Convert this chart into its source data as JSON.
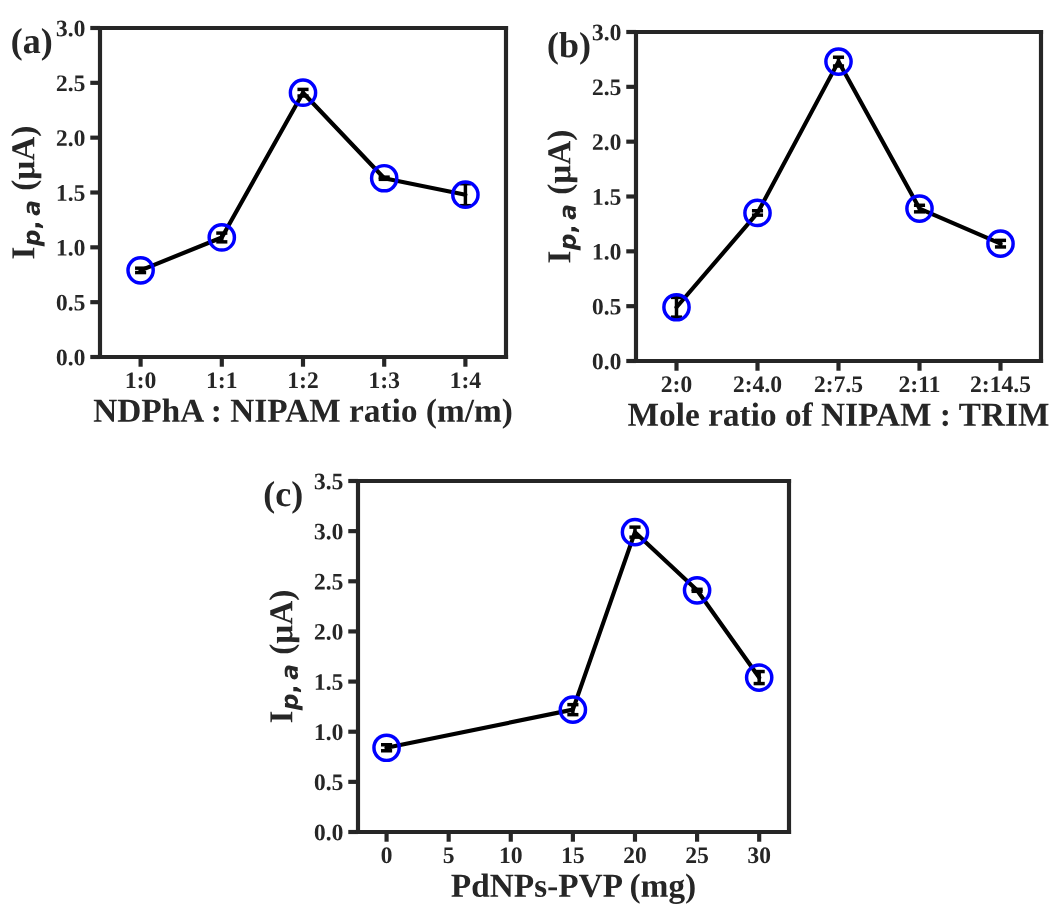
{
  "chart_data": [
    {
      "type": "line",
      "title": "(a)",
      "xlabel": "NDPhA : NIPAM ratio (m/m)",
      "ylabel": "I$_{p,a}$ (μA)",
      "categories": [
        "1:0",
        "1:1",
        "1:2",
        "1:3",
        "1:4"
      ],
      "ylim": [
        0,
        3.0
      ],
      "yticks": [
        {
          "value": 0,
          "label": "0.0"
        },
        0.5,
        {
          "value": 1,
          "label": "1.0"
        },
        1.5,
        {
          "value": 2,
          "label": "2.0"
        },
        2.5,
        {
          "value": 3,
          "label": "3.0"
        }
      ],
      "marker": "circle",
      "line_style": "solid",
      "grid": false,
      "legend": false,
      "series": [
        {
          "color": "#000000",
          "colors": [
            "#0000ff",
            "#0000ff",
            "#0000ff",
            "#0000ff",
            "#0000ff"
          ],
          "values": [
            0.79,
            1.09,
            2.41,
            1.63,
            1.48
          ],
          "errors": [
            0.02,
            0.04,
            0.03,
            0.01,
            0.1
          ]
        }
      ]
    },
    {
      "type": "line",
      "title": "(b)",
      "xlabel": "Mole ratio of NIPAM : TRIM",
      "ylabel": "I$_{p,a}$ (μA)",
      "categories": [
        "2:0",
        "2:4.0",
        "2:7.5",
        "2:11",
        "2:14.5"
      ],
      "ylim": [
        0,
        3.0
      ],
      "yticks": [
        {
          "value": 0,
          "label": "0.0"
        },
        0.5,
        {
          "value": 1,
          "label": "1.0"
        },
        1.5,
        {
          "value": 2,
          "label": "2.0"
        },
        2.5,
        {
          "value": 3,
          "label": "3.0"
        }
      ],
      "marker": "circle",
      "line_style": "solid",
      "grid": false,
      "legend": false,
      "series": [
        {
          "color": "#000000",
          "colors": [
            "#0000ff",
            "#0000ff",
            "#0000ff",
            "#0000ff",
            "#0000ff"
          ],
          "values": [
            0.49,
            1.35,
            2.73,
            1.39,
            1.07
          ],
          "errors": [
            0.09,
            0.02,
            0.04,
            0.03,
            0.03
          ]
        }
      ]
    },
    {
      "type": "line",
      "title": "(c)",
      "xlabel": "PdNPs-PVP (mg)",
      "ylabel": "I$_{p,a}$ (μA)",
      "x": [
        0,
        15,
        20,
        25,
        30
      ],
      "xlim": [
        -2.3,
        32.4
      ],
      "xticks": [
        0,
        5,
        10,
        15,
        20,
        25,
        30
      ],
      "ylim": [
        0,
        3.5
      ],
      "yticks": [
        {
          "value": 0,
          "label": "0.0"
        },
        0.5,
        {
          "value": 1,
          "label": "1.0"
        },
        1.5,
        {
          "value": 2,
          "label": "2.0"
        },
        2.5,
        {
          "value": 3,
          "label": "3.0"
        },
        3.5
      ],
      "marker": "circle",
      "line_style": "solid",
      "grid": false,
      "legend": false,
      "series": [
        {
          "color": "#000000",
          "colors": [
            "#0000ff",
            "#0000ff",
            "#0000ff",
            "#0000ff",
            "#0000ff"
          ],
          "values": [
            0.84,
            1.22,
            2.99,
            2.41,
            1.54
          ],
          "errors": [
            0.03,
            0.05,
            0.05,
            0.01,
            0.06
          ]
        }
      ]
    }
  ]
}
